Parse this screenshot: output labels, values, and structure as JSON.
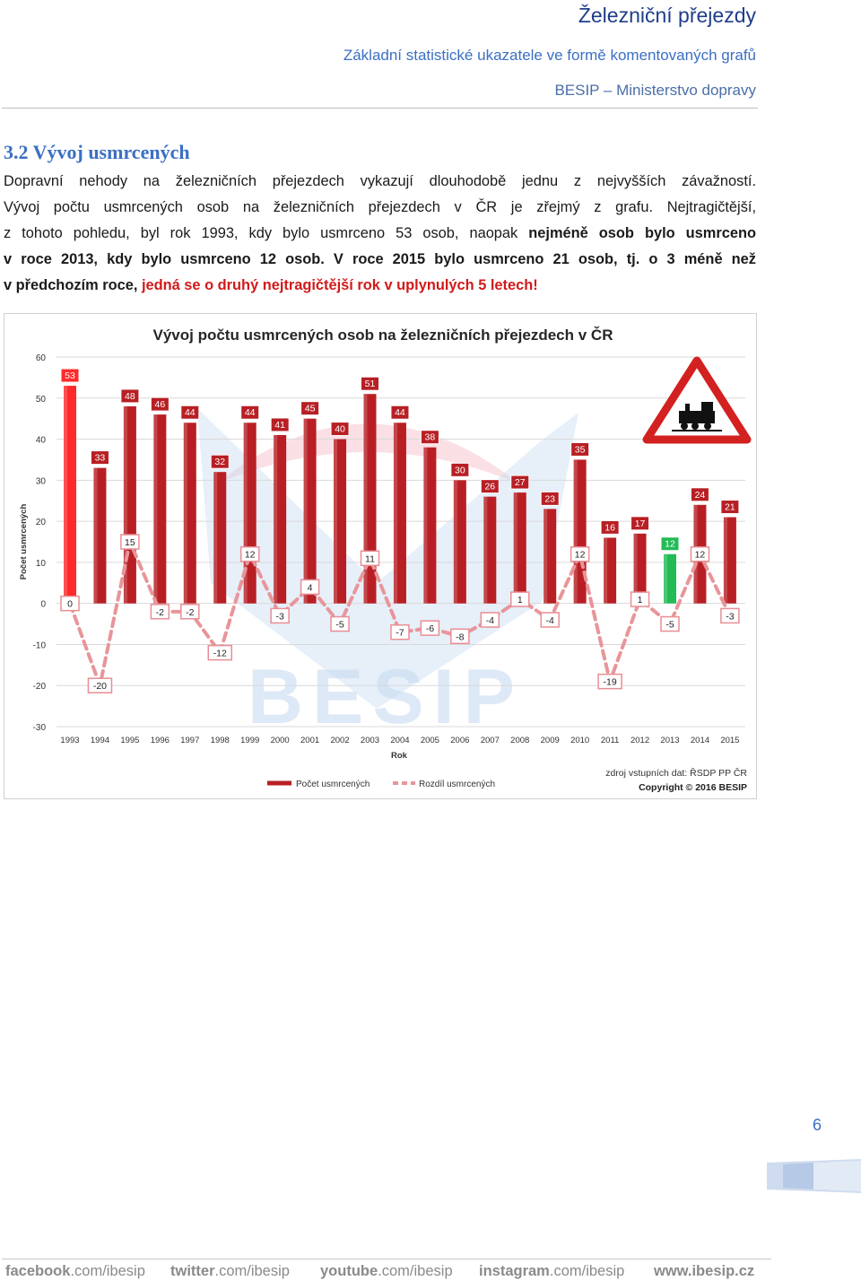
{
  "header": {
    "title": "Železniční přejezdy",
    "subtitle": "Základní statistické ukazatele ve formě komentovaných grafů",
    "org": "BESIP – Ministerstvo dopravy"
  },
  "section": {
    "title": "3.2 Vývoj usmrcených",
    "lines": [
      {
        "segments": [
          {
            "t": "Dopravní nehody na železničních přejezdech vykazují dlouhodobě jednu z nejvyšších závažností."
          }
        ]
      },
      {
        "segments": [
          {
            "t": "Vývoj počtu usmrcených osob na železničních přejezdech v ČR je zřejmý z grafu. Nejtragičtější,"
          }
        ]
      },
      {
        "segments": [
          {
            "t": "z tohoto pohledu, byl rok 1993, kdy bylo usmrceno 53 osob, naopak "
          },
          {
            "t": "nejméně osob bylo usmrceno",
            "b": true
          }
        ]
      },
      {
        "segments": [
          {
            "t": "v roce 2013, kdy bylo usmrceno 12 osob. V roce 2015 bylo usmrceno 21 osob, tj. o 3 méně než",
            "b": true
          }
        ]
      },
      {
        "segments": [
          {
            "t": "v předchozím roce, ",
            "b": true
          },
          {
            "t": "jedná se o druhý nejtragičtější rok v uplynulých 5 letech!",
            "r": true
          }
        ],
        "last": true
      }
    ]
  },
  "chart_data": {
    "type": "bar",
    "title": "Vývoj počtu usmrcených osob na železničních přejezdech v ČR",
    "xlabel": "Rok",
    "ylabel": "Počet usmrcených",
    "ylim": [
      -30,
      60
    ],
    "yticks": [
      -30,
      -20,
      -10,
      0,
      10,
      20,
      30,
      40,
      50,
      60
    ],
    "grid": true,
    "legend_position": "bottom",
    "categories": [
      "1993",
      "1994",
      "1995",
      "1996",
      "1997",
      "1998",
      "1999",
      "2000",
      "2001",
      "2002",
      "2003",
      "2004",
      "2005",
      "2006",
      "2007",
      "2008",
      "2009",
      "2010",
      "2011",
      "2012",
      "2013",
      "2014",
      "2015"
    ],
    "series": [
      {
        "name": "Počet usmrcených",
        "kind": "bar",
        "color": "#b81f24",
        "values": [
          53,
          33,
          48,
          46,
          44,
          32,
          44,
          41,
          45,
          40,
          51,
          44,
          38,
          30,
          26,
          27,
          23,
          35,
          16,
          17,
          12,
          24,
          21
        ]
      },
      {
        "name": "Rozdíl usmrcených",
        "kind": "line-dashed",
        "color": "#e8959a",
        "values": [
          0,
          -20,
          15,
          -2,
          -2,
          -12,
          12,
          -3,
          4,
          -5,
          11,
          -7,
          -6,
          -8,
          -4,
          1,
          -4,
          12,
          -19,
          1,
          -5,
          12,
          -3
        ]
      }
    ],
    "highlight": {
      "1993": "#ff2a2a",
      "2013": "#22bb55"
    },
    "source_note": "zdroj vstupních dat: ŘSDP PP ČR",
    "copyright": "Copyright © 2016 BESIP",
    "watermark": "BESIP"
  },
  "page_number": "6",
  "footer": [
    {
      "strong": "facebook",
      "rest": ".com/ibesip"
    },
    {
      "strong": "twitter",
      "rest": ".com/ibesip"
    },
    {
      "strong": "youtube",
      "rest": ".com/ibesip"
    },
    {
      "strong": "instagram",
      "rest": ".com/ibesip"
    },
    {
      "strong": "www.ibesip.cz",
      "rest": ""
    }
  ]
}
